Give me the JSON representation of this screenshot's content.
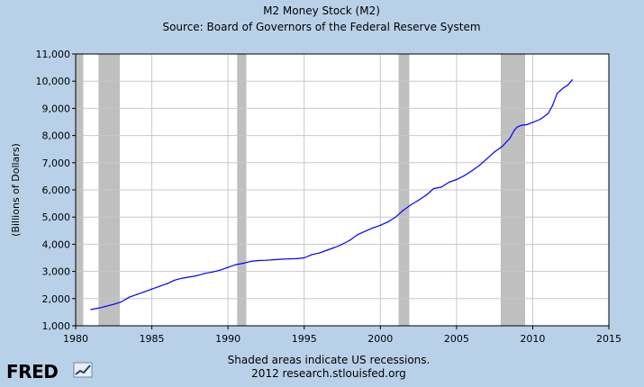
{
  "chart_data": {
    "type": "line",
    "title": "M2 Money Stock (M2)",
    "subtitle": "Source: Board of Governors of the Federal Reserve System",
    "xlabel": "",
    "ylabel": "(Billions of Dollars)",
    "xlim": [
      1980,
      2015
    ],
    "ylim": [
      1000,
      11000
    ],
    "x_ticks": [
      1980,
      1985,
      1990,
      1995,
      2000,
      2005,
      2010,
      2015
    ],
    "y_ticks": [
      1000,
      2000,
      3000,
      4000,
      5000,
      6000,
      7000,
      8000,
      9000,
      10000,
      11000
    ],
    "y_tick_labels": [
      "1,000",
      "2,000",
      "3,000",
      "4,000",
      "5,000",
      "6,000",
      "7,000",
      "8,000",
      "9,000",
      "10,000",
      "11,000"
    ],
    "grid": true,
    "recessions": [
      {
        "start": 1980.0,
        "end": 1980.5
      },
      {
        "start": 1981.5,
        "end": 1982.9
      },
      {
        "start": 1990.6,
        "end": 1991.2
      },
      {
        "start": 2001.2,
        "end": 2001.9
      },
      {
        "start": 2007.9,
        "end": 2009.5
      }
    ],
    "series": [
      {
        "name": "M2",
        "color": "#0000ff",
        "x": [
          1981.0,
          1981.5,
          1982.0,
          1982.5,
          1983.0,
          1983.5,
          1984.0,
          1984.5,
          1985.0,
          1985.5,
          1986.0,
          1986.5,
          1987.0,
          1987.5,
          1988.0,
          1988.5,
          1989.0,
          1989.5,
          1990.0,
          1990.5,
          1991.0,
          1991.5,
          1992.0,
          1992.5,
          1993.0,
          1993.5,
          1994.0,
          1994.5,
          1995.0,
          1995.5,
          1996.0,
          1996.5,
          1997.0,
          1997.5,
          1998.0,
          1998.5,
          1999.0,
          1999.5,
          2000.0,
          2000.5,
          2001.0,
          2001.5,
          2002.0,
          2002.5,
          2003.0,
          2003.5,
          2004.0,
          2004.5,
          2005.0,
          2005.5,
          2006.0,
          2006.5,
          2007.0,
          2007.5,
          2008.0,
          2008.5,
          2008.8,
          2009.0,
          2009.3,
          2009.6,
          2010.0,
          2010.5,
          2011.0,
          2011.3,
          2011.6,
          2011.8,
          2012.0,
          2012.3,
          2012.6
        ],
        "values": [
          1600,
          1650,
          1720,
          1790,
          1880,
          2050,
          2150,
          2250,
          2350,
          2450,
          2550,
          2680,
          2750,
          2800,
          2850,
          2930,
          2980,
          3050,
          3150,
          3250,
          3300,
          3370,
          3400,
          3410,
          3430,
          3450,
          3460,
          3470,
          3500,
          3620,
          3680,
          3780,
          3880,
          4000,
          4150,
          4350,
          4480,
          4600,
          4700,
          4820,
          5000,
          5250,
          5450,
          5620,
          5800,
          6050,
          6100,
          6280,
          6380,
          6520,
          6700,
          6900,
          7150,
          7400,
          7600,
          7900,
          8200,
          8320,
          8380,
          8400,
          8480,
          8600,
          8800,
          9100,
          9550,
          9650,
          9750,
          9850,
          10050
        ]
      }
    ]
  },
  "footer": {
    "line1": "Shaded areas indicate US recessions.",
    "line2": "2012 research.stlouisfed.org"
  },
  "logo": {
    "text": "FRED"
  },
  "colors": {
    "background": "#b9d1e8",
    "plot_background": "#ffffff",
    "recession": "#bfbfbf",
    "grid": "#c8c8c8",
    "line": "#0000ff",
    "logo_bar": "#1f3f6b"
  }
}
